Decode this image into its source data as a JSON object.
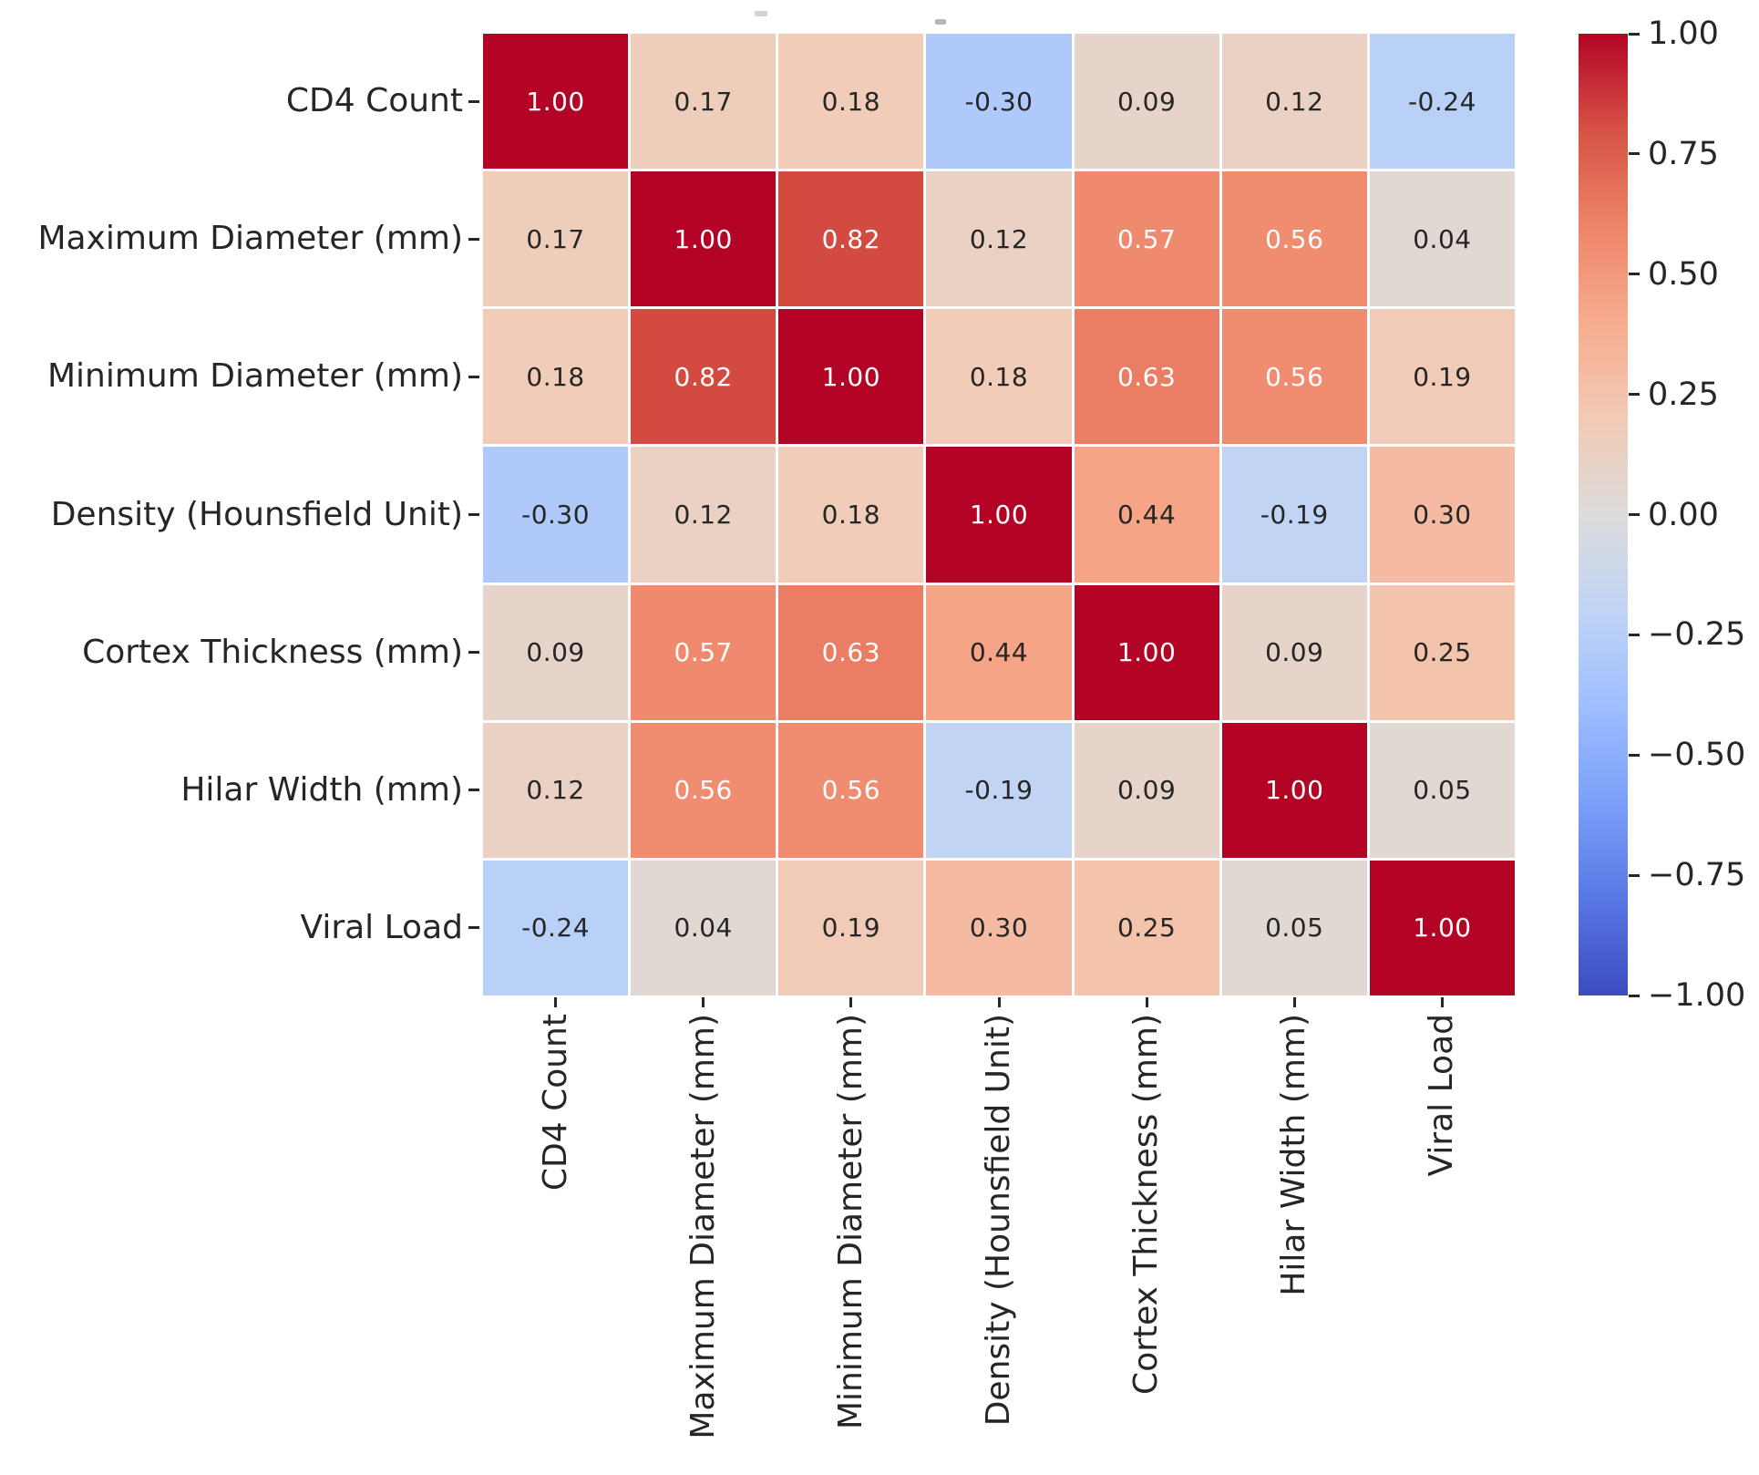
{
  "chart_data": {
    "type": "heatmap",
    "title": "",
    "variables": [
      "CD4 Count",
      "Maximum Diameter (mm)",
      "Minimum Diameter (mm)",
      "Density (Hounsfield Unit)",
      "Cortex Thickness (mm)",
      "Hilar Width (mm)",
      "Viral Load"
    ],
    "matrix": [
      [
        1.0,
        0.17,
        0.18,
        -0.3,
        0.09,
        0.12,
        -0.24
      ],
      [
        0.17,
        1.0,
        0.82,
        0.12,
        0.57,
        0.56,
        0.04
      ],
      [
        0.18,
        0.82,
        1.0,
        0.18,
        0.63,
        0.56,
        0.19
      ],
      [
        -0.3,
        0.12,
        0.18,
        1.0,
        0.44,
        -0.19,
        0.3
      ],
      [
        0.09,
        0.57,
        0.63,
        0.44,
        1.0,
        0.09,
        0.25
      ],
      [
        0.12,
        0.56,
        0.56,
        -0.19,
        0.09,
        1.0,
        0.05
      ],
      [
        -0.24,
        0.04,
        0.19,
        0.3,
        0.25,
        0.05,
        1.0
      ]
    ],
    "value_decimals": 2,
    "vmin": -1,
    "vmax": 1,
    "grid_line_color": "#ffffff",
    "colorbar": {
      "tick_labels": [
        "1.00",
        "0.75",
        "0.50",
        "0.25",
        "0.00",
        "−0.25",
        "−0.50",
        "−0.75",
        "−1.00"
      ],
      "tick_values": [
        1,
        0.75,
        0.5,
        0.25,
        0,
        -0.25,
        -0.5,
        -0.75,
        -1
      ]
    },
    "colormap": {
      "name": "coolwarm",
      "anchors": [
        "#3b4cc0",
        "#5977e3",
        "#7b9ff9",
        "#9ebeff",
        "#c0d4f5",
        "#dddcdb",
        "#f2cab5",
        "#f7ac8e",
        "#ee8468",
        "#d65244",
        "#b40426"
      ]
    },
    "annotation_colors": {
      "light": "#ffffff",
      "dark": "#262626"
    },
    "axis_text_color": "#262626"
  }
}
